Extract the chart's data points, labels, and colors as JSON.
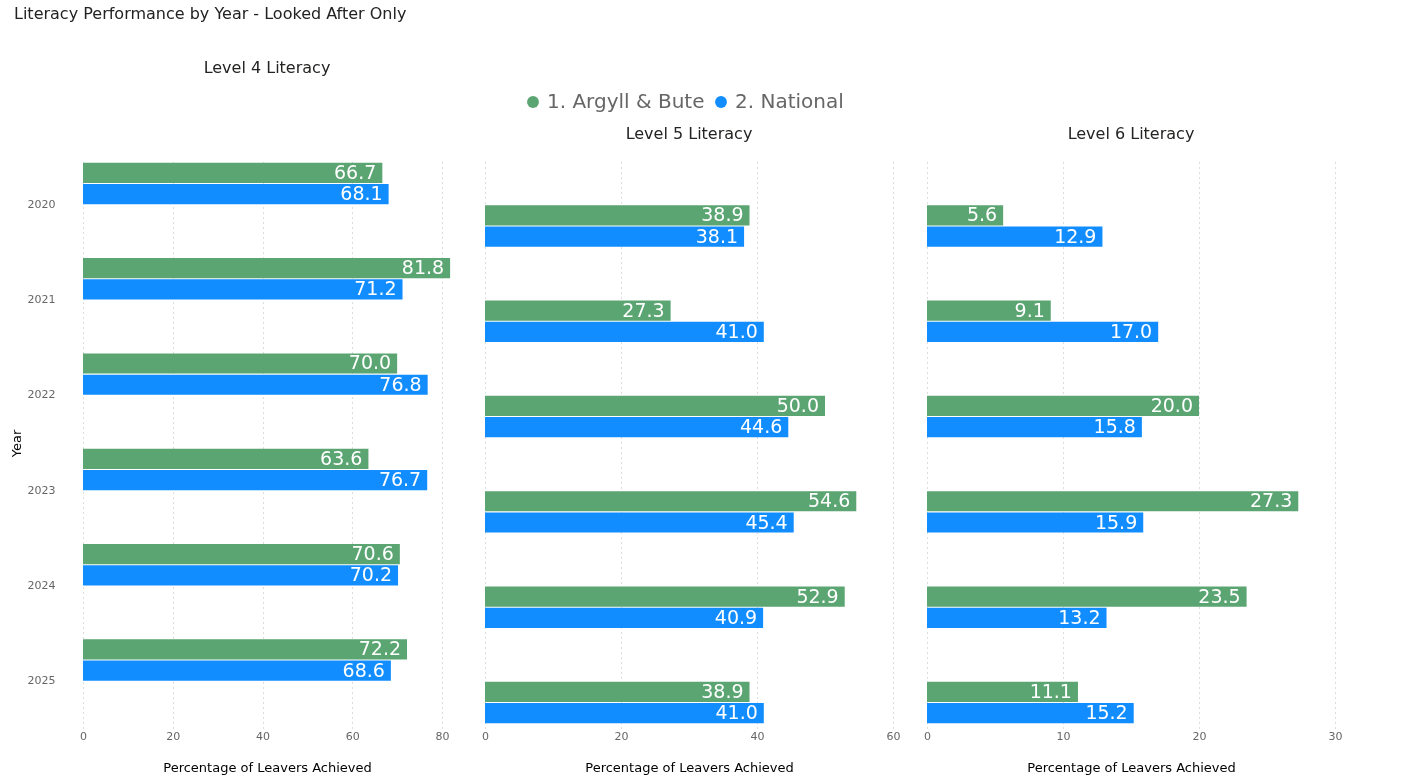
{
  "chart_data": [
    {
      "type": "bar",
      "orientation": "horizontal",
      "title": "Level 4 Literacy",
      "annotations": [
        "Literacy Performance by Year - Looked After Only"
      ],
      "xlabel": "Percentage of Leavers Achieved",
      "ylabel": "Year",
      "categories": [
        "2020",
        "2021",
        "2022",
        "2023",
        "2024",
        "2025"
      ],
      "series": [
        {
          "name": "1. Argyll & Bute",
          "color": "#5ba572",
          "values": [
            66.7,
            81.8,
            70.0,
            63.6,
            70.6,
            72.2
          ],
          "value_labels": [
            "66.7",
            "81.8",
            "70.0",
            "63.6",
            "70.6",
            "72.2"
          ]
        },
        {
          "name": "2. National",
          "color": "#118dff",
          "values": [
            68.1,
            71.2,
            76.8,
            76.7,
            70.2,
            68.6
          ],
          "value_labels": [
            "68.1",
            "71.2",
            "76.8",
            "76.7",
            "70.2",
            "68.6"
          ]
        }
      ],
      "xlim": [
        0,
        82
      ],
      "xticks": [
        0,
        20,
        40,
        60,
        80
      ],
      "grid": "x",
      "legend": "top"
    },
    {
      "type": "bar",
      "orientation": "horizontal",
      "title": "Level 5 Literacy",
      "xlabel": "Percentage of Leavers Achieved",
      "categories": [
        "2020",
        "2021",
        "2022",
        "2023",
        "2024",
        "2025"
      ],
      "series": [
        {
          "color": "#5ba572",
          "values": [
            38.9,
            27.3,
            50.0,
            54.6,
            52.9,
            38.9
          ],
          "value_labels": [
            "38.9",
            "27.3",
            "50.0",
            "54.6",
            "52.9",
            "38.9"
          ]
        },
        {
          "color": "#118dff",
          "values": [
            38.1,
            41.0,
            44.6,
            45.4,
            40.9,
            41.0
          ],
          "value_labels": [
            "38.1",
            "41.0",
            "44.6",
            "45.4",
            "40.9",
            "41.0"
          ]
        }
      ],
      "xlim": [
        0,
        60
      ],
      "xticks": [
        0,
        20,
        40,
        60
      ],
      "grid": "x",
      "tick_labels": "x"
    },
    {
      "type": "bar",
      "orientation": "horizontal",
      "title": "Level 6 Literacy",
      "xlabel": "Percentage of Leavers Achieved",
      "categories": [
        "2020",
        "2021",
        "2022",
        "2023",
        "2024",
        "2025"
      ],
      "series": [
        {
          "color": "#5ba572",
          "values": [
            5.6,
            9.1,
            20.0,
            27.3,
            23.5,
            11.1
          ],
          "value_labels": [
            "5.6",
            "9.1",
            "20.0",
            "27.3",
            "23.5",
            "11.1"
          ]
        },
        {
          "color": "#118dff",
          "values": [
            12.9,
            17.0,
            15.8,
            15.9,
            13.2,
            15.2
          ],
          "value_labels": [
            "12.9",
            "17.0",
            "15.8",
            "15.9",
            "13.2",
            "15.2"
          ]
        }
      ],
      "xlim": [
        0,
        30
      ],
      "xticks": [
        0,
        10,
        20,
        30
      ],
      "grid": "x",
      "tick_labels": "x"
    }
  ]
}
